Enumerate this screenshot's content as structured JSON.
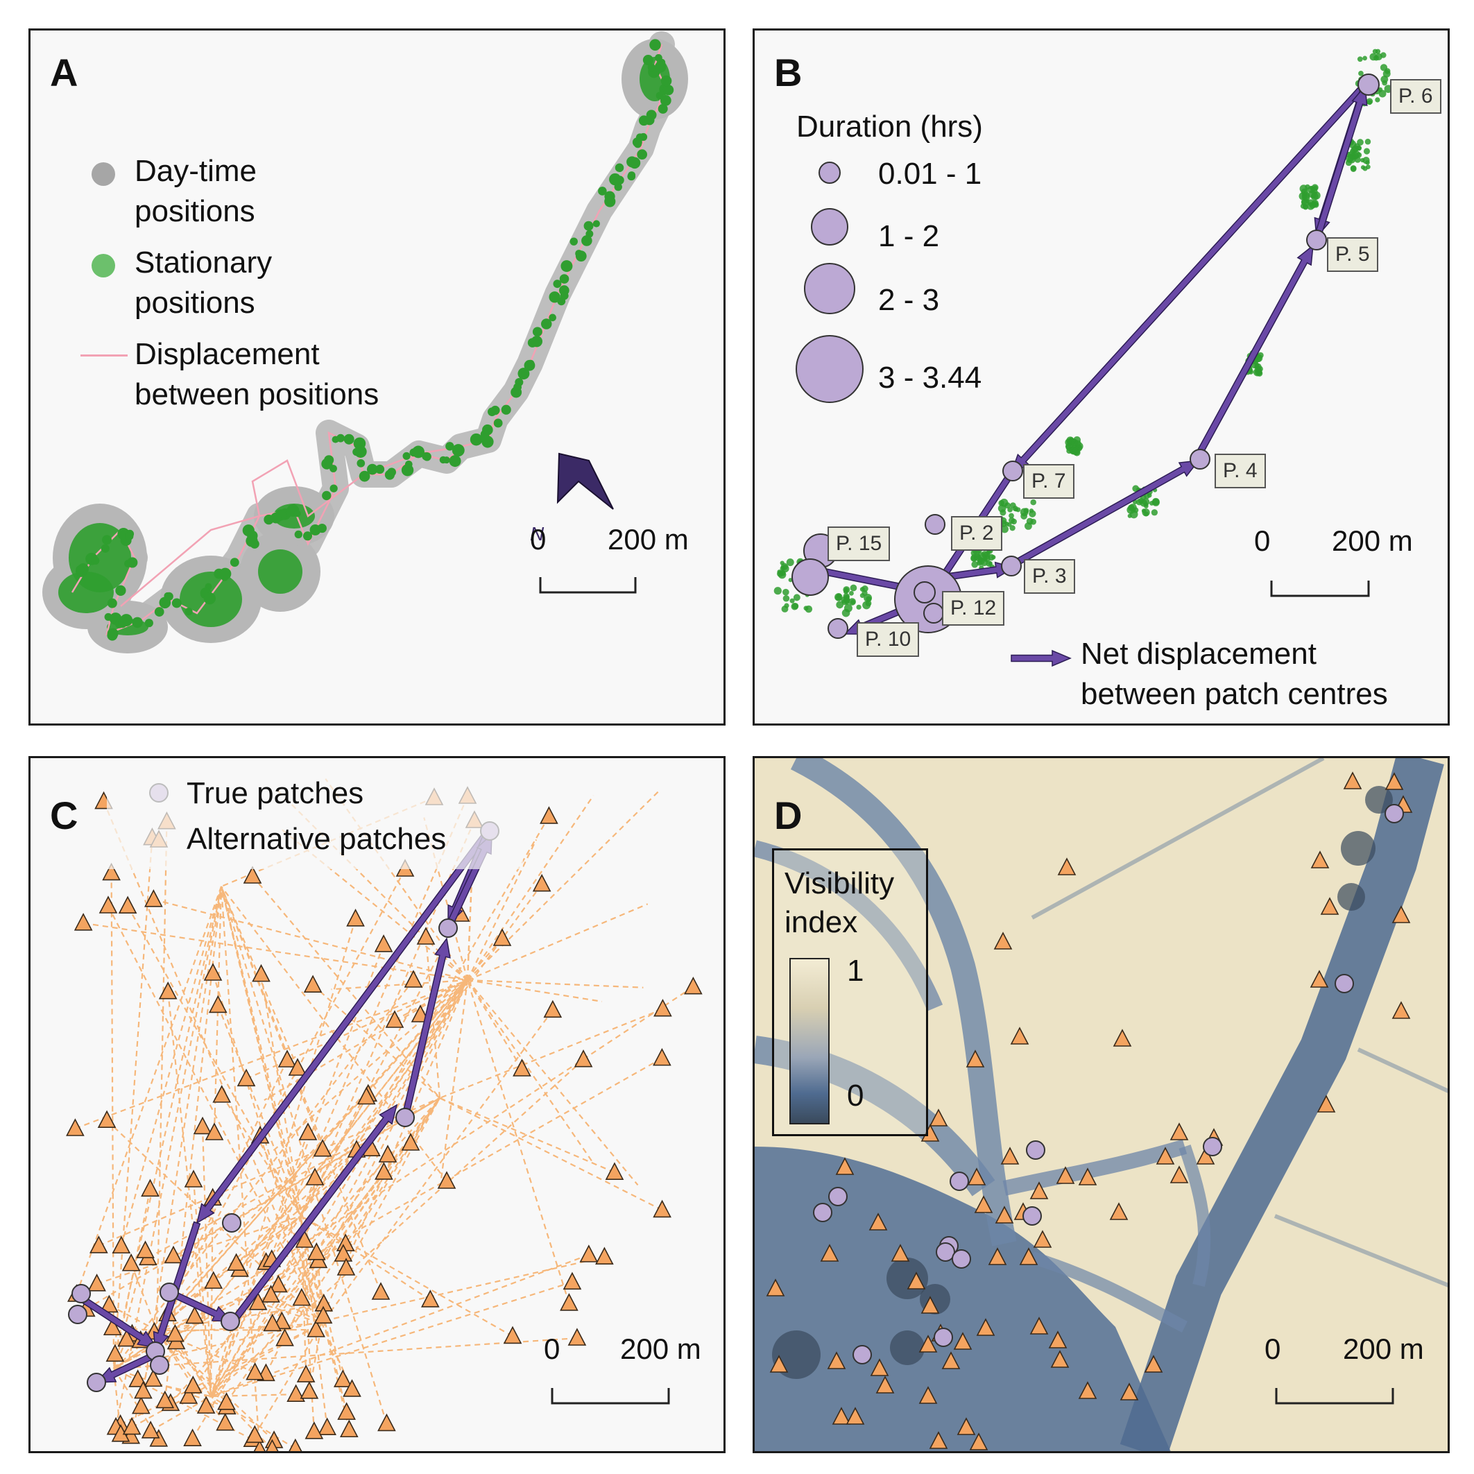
{
  "panels": {
    "a": {
      "letter": "A",
      "legend": {
        "daytime_line1": "Day-time",
        "daytime_line2": "positions",
        "stationary_line1": "Stationary",
        "stationary_line2": "positions",
        "displacement_line1": "Displacement",
        "displacement_line2": "between positions"
      },
      "north": "N",
      "scale": {
        "start": "0",
        "end": "200 m"
      }
    },
    "b": {
      "letter": "B",
      "legend_title": "Duration (hrs)",
      "size_classes": [
        "0.01 - 1",
        "1 - 2",
        "2 - 3",
        "3 - 3.44"
      ],
      "patch_labels": [
        "P. 6",
        "P. 5",
        "P. 4",
        "P. 7",
        "P. 2",
        "P. 3",
        "P. 15",
        "P. 12",
        "P. 10"
      ],
      "arrow_legend_line1": "Net displacement",
      "arrow_legend_line2": "between patch centres",
      "scale": {
        "start": "0",
        "end": "200 m"
      }
    },
    "c": {
      "letter": "C",
      "legend": {
        "true": "True patches",
        "alternative": "Alternative patches"
      },
      "scale": {
        "start": "0",
        "end": "200 m"
      }
    },
    "d": {
      "letter": "D",
      "legend_title_line1": "Visibility",
      "legend_title_line2": "index",
      "ramp_max": "1",
      "ramp_min": "0",
      "scale": {
        "start": "0",
        "end": "200 m"
      }
    }
  },
  "colors": {
    "daytime": "#a6a6a6",
    "stationary": "#2f9e2f",
    "displacement": "#f2a2b4",
    "patch_fill": "#bca9d4",
    "arrow": "#6a49a6",
    "alt_patch": "#f4a460",
    "alt_line": "#f6b77a"
  }
}
